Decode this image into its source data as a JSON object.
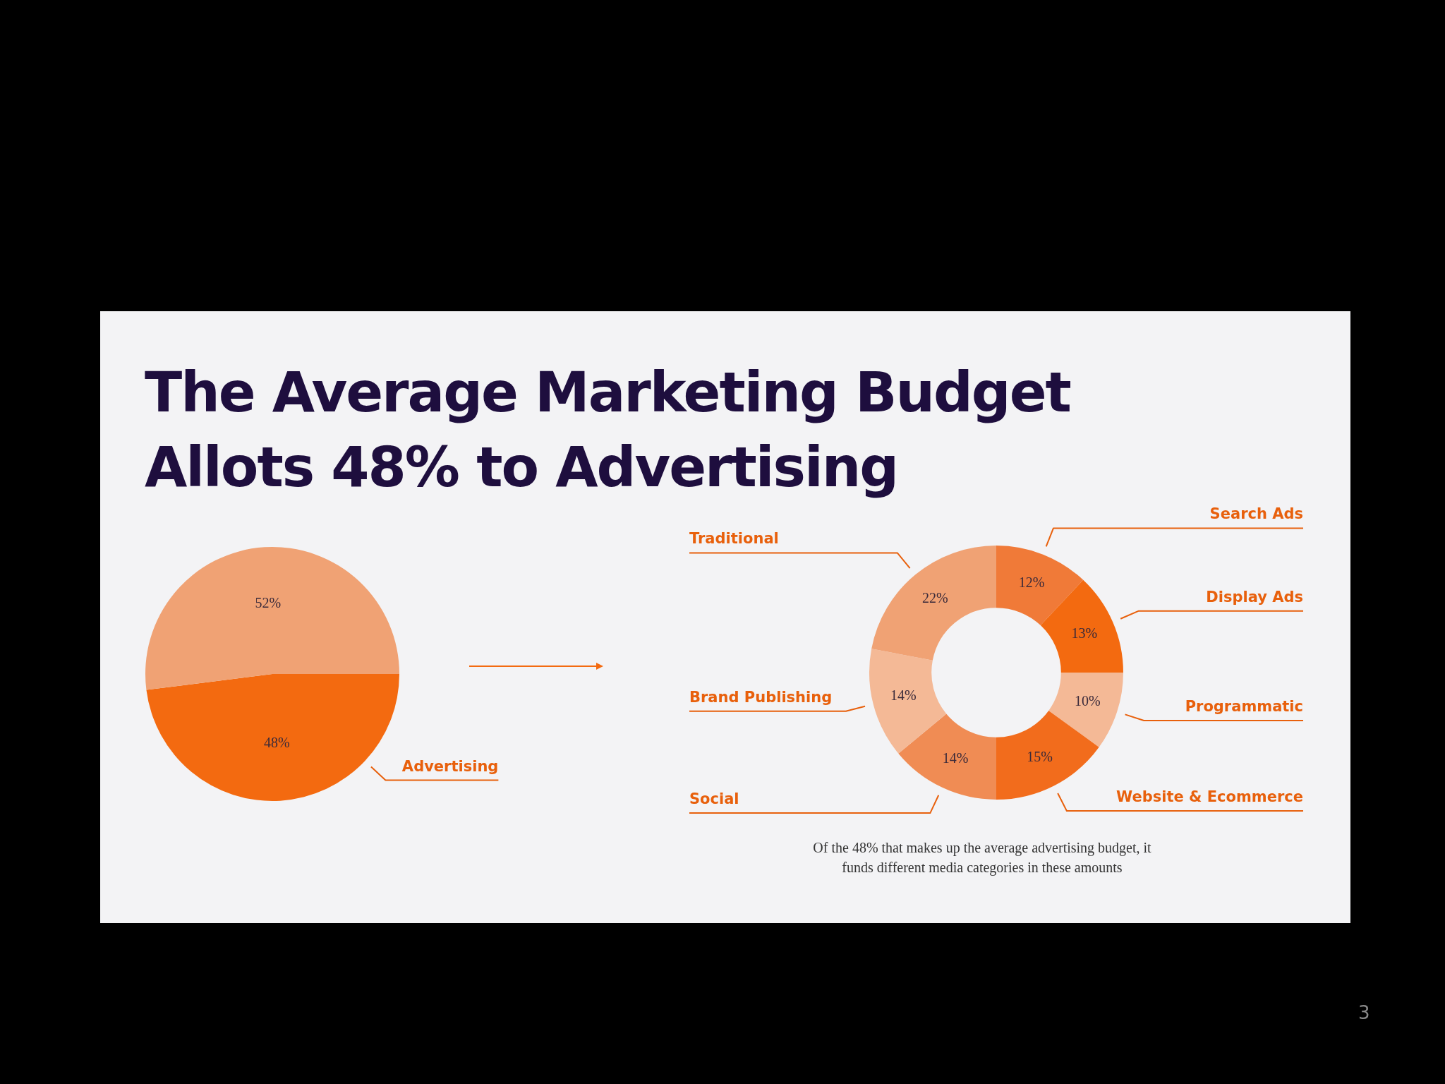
{
  "chart_data": [
    {
      "type": "pie",
      "title": "The Average Marketing Budget Allots 48% to Advertising",
      "categories": [
        "Advertising",
        null
      ],
      "values": [
        48,
        52
      ],
      "colors": [
        "#f36a10",
        "#f0a274"
      ],
      "value_labels": [
        "48%",
        "52%"
      ]
    },
    {
      "type": "donut",
      "categories": [
        "Search Ads",
        "Display Ads",
        "Programmatic",
        "Website & Ecommerce",
        "Social",
        "Brand Publishing",
        "Traditional"
      ],
      "values": [
        12,
        13,
        10,
        15,
        14,
        14,
        22
      ],
      "colors": [
        "#f07a38",
        "#f36a10",
        "#f4b996",
        "#f26c1c",
        "#f08c54",
        "#f4b996",
        "#f0a274"
      ],
      "value_labels": [
        "12%",
        "13%",
        "10%",
        "15%",
        "14%",
        "14%",
        "22%"
      ],
      "annotations": [
        "Of the 48% that makes up the average advertising budget, it funds different media categories in these amounts",
        "3"
      ]
    }
  ]
}
